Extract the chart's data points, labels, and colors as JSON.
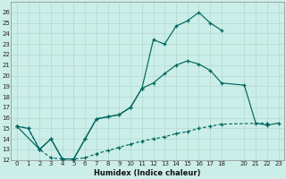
{
  "xlabel": "Humidex (Indice chaleur)",
  "bg_color": "#cceee8",
  "grid_color": "#b0d8d0",
  "line_color": "#006660",
  "xlim": [
    -0.5,
    23.5
  ],
  "ylim": [
    12,
    27
  ],
  "xticks": [
    0,
    1,
    2,
    3,
    4,
    5,
    6,
    7,
    8,
    9,
    10,
    11,
    12,
    13,
    14,
    15,
    16,
    17,
    18,
    20,
    21,
    22,
    23
  ],
  "yticks": [
    12,
    13,
    14,
    15,
    16,
    17,
    18,
    19,
    20,
    21,
    22,
    23,
    24,
    25,
    26
  ],
  "line1_x": [
    0,
    1,
    2,
    3,
    4,
    5,
    6,
    7,
    8,
    9,
    10,
    11,
    12,
    13,
    14,
    15,
    16,
    17,
    18
  ],
  "line1_y": [
    15.2,
    15.0,
    13.0,
    14.0,
    12.1,
    12.1,
    14.0,
    15.9,
    16.1,
    16.3,
    17.0,
    18.8,
    23.4,
    23.0,
    24.7,
    25.2,
    26.0,
    25.0,
    24.3
  ],
  "line2_x": [
    0,
    2,
    3,
    4,
    5,
    6,
    7,
    8,
    9,
    10,
    11,
    12,
    13,
    14,
    15,
    16,
    17,
    18,
    20,
    21,
    22,
    23
  ],
  "line2_y": [
    15.2,
    13.0,
    14.0,
    12.1,
    12.1,
    14.0,
    15.9,
    16.1,
    16.3,
    17.0,
    18.8,
    19.3,
    20.2,
    21.0,
    21.4,
    21.1,
    20.5,
    19.3,
    19.1,
    15.5,
    15.3,
    15.5
  ],
  "line3_x": [
    0,
    1,
    2,
    3,
    4,
    5,
    6,
    7,
    8,
    9,
    10,
    11,
    12,
    13,
    14,
    15,
    16,
    17,
    18,
    22
  ],
  "line3_y": [
    15.2,
    15.0,
    13.0,
    12.2,
    12.1,
    12.1,
    12.2,
    12.6,
    12.9,
    13.2,
    13.5,
    13.8,
    14.0,
    14.2,
    14.5,
    14.7,
    15.0,
    15.2,
    15.4,
    15.5
  ],
  "line1_dash": false,
  "line2_dash": false,
  "line3_dash": true
}
